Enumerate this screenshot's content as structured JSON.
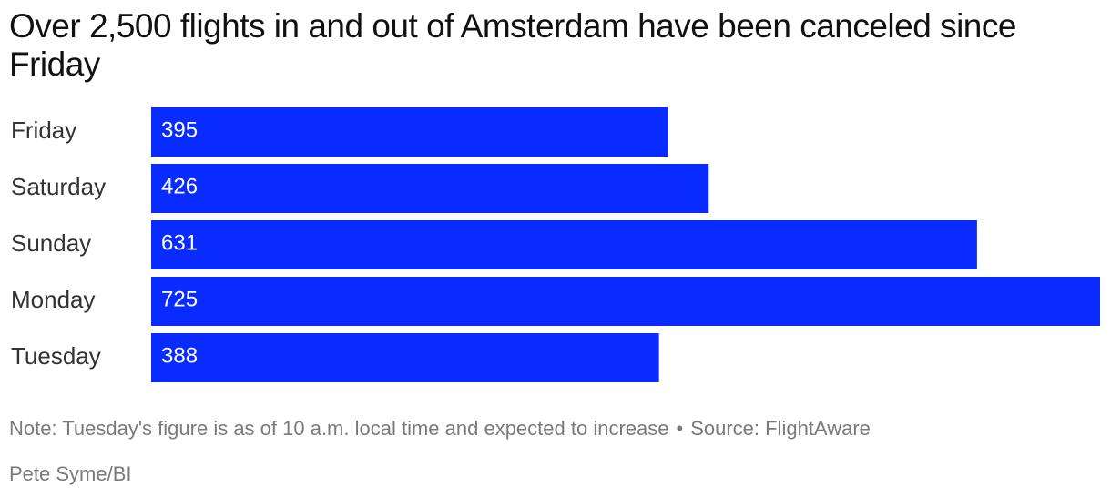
{
  "chart_data": {
    "type": "bar",
    "orientation": "horizontal",
    "title": "Over 2,500 flights in and out of Amsterdam have been canceled since Friday",
    "categories": [
      "Friday",
      "Saturday",
      "Sunday",
      "Monday",
      "Tuesday"
    ],
    "values": [
      395,
      426,
      631,
      725,
      388
    ],
    "color": "#0a2bff",
    "note": "Note: Tuesday's figure is as of 10 a.m. local time and expected to increase",
    "source": "Source: FlightAware",
    "credit": "Pete Syme/BI"
  }
}
